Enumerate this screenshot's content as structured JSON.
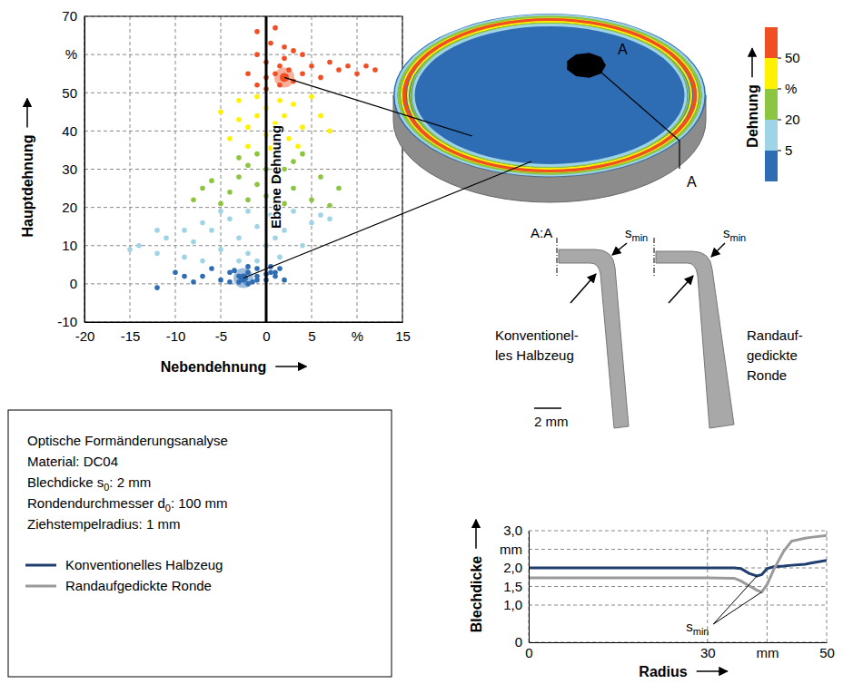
{
  "chart_data": [
    {
      "type": "scatter",
      "xlabel": "Nebendehnung",
      "ylabel": "Hauptdehnung",
      "xlim": [
        -20,
        15
      ],
      "ylim": [
        -10,
        70
      ],
      "xticks": [
        -20,
        -15,
        -10,
        -5,
        0,
        5,
        {
          "value": 10,
          "label": "%"
        },
        15
      ],
      "yticks": [
        -10,
        0,
        10,
        20,
        30,
        40,
        50,
        {
          "value": 60,
          "label": "%"
        },
        70
      ],
      "grid": true,
      "marker": "circle",
      "annotations": [
        {
          "text": "Ebene Dehnung",
          "x": 0
        }
      ],
      "highlights": [
        {
          "x": 2,
          "y": 54,
          "color": "#f04e23"
        },
        {
          "x": -2.5,
          "y": 1.5,
          "color": "#2e6db4"
        }
      ],
      "series": [
        {
          "color": "#2e6db4",
          "x": [
            -12,
            -10,
            -9,
            -8,
            -7,
            -6,
            -5,
            -4,
            -3,
            -2.5,
            -2,
            -1.5,
            -1,
            0,
            0.5,
            1,
            1.5,
            2,
            -3.5,
            -2,
            -1,
            0.5,
            -4,
            -2,
            -3,
            -1,
            0,
            1
          ],
          "values": [
            -1,
            3,
            2,
            0.5,
            2,
            4,
            1,
            0.5,
            2,
            1,
            3,
            0.5,
            2,
            1,
            3,
            2,
            4,
            1,
            3.5,
            4.5,
            4,
            4.5,
            3,
            0,
            0.5,
            1,
            2.5,
            3
          ]
        },
        {
          "color": "#9fd3e6",
          "x": [
            -15,
            -14,
            -12,
            -11,
            -9,
            -8,
            -7,
            -6,
            -5,
            -4,
            -3,
            -3,
            -2,
            -2,
            -1,
            -1,
            0,
            0.5,
            1,
            1.5,
            2,
            3,
            4,
            5,
            6,
            7,
            -5,
            -7,
            -9,
            -12
          ],
          "values": [
            9,
            10,
            8,
            12,
            7,
            11,
            6,
            14,
            9,
            17,
            6,
            12,
            19,
            8,
            15,
            6,
            10,
            18,
            12,
            7,
            14,
            19,
            10,
            16,
            18,
            17,
            19,
            16,
            14,
            14
          ]
        },
        {
          "color": "#8cc540",
          "x": [
            -8,
            -7,
            -5,
            -4,
            -3,
            -2,
            -2,
            -1,
            -1,
            0,
            0,
            1,
            1,
            2,
            2,
            3,
            4,
            5,
            6,
            7,
            8,
            -6,
            3,
            -3
          ],
          "values": [
            22,
            25,
            21,
            24,
            28,
            31,
            22,
            34,
            26,
            30,
            23,
            33,
            27,
            21,
            30,
            25,
            34,
            22,
            28,
            20.5,
            25,
            27,
            32,
            33
          ]
        },
        {
          "color": "#fff200",
          "x": [
            -5,
            -4,
            -3,
            -2,
            -2,
            -1,
            -1,
            0,
            0,
            1,
            1,
            1.5,
            2,
            2.5,
            3,
            4,
            5,
            6,
            7,
            -3,
            0.5,
            3.5
          ],
          "values": [
            45,
            38,
            48,
            41,
            36,
            44,
            49,
            39,
            46,
            42,
            36,
            48,
            44,
            38,
            47,
            41,
            49,
            44,
            40,
            43,
            35.5,
            36
          ]
        },
        {
          "color": "#f04e23",
          "x": [
            -2,
            -1,
            -1,
            0,
            0,
            0.5,
            1,
            1.5,
            2,
            2,
            2.5,
            3,
            3,
            4,
            5,
            6,
            7,
            8,
            9,
            10,
            11,
            12,
            -1,
            1,
            2,
            4,
            0,
            1.5
          ],
          "values": [
            55,
            52,
            60,
            58,
            51,
            63,
            55,
            52,
            54,
            59,
            56,
            53,
            61,
            55,
            57,
            54,
            58,
            56,
            57,
            55,
            57,
            56,
            66,
            67,
            62,
            60,
            54,
            57
          ]
        }
      ]
    },
    {
      "type": "line",
      "xlabel": "Radius",
      "ylabel": "Blechdicke",
      "xlim": [
        0,
        50
      ],
      "ylim": [
        0,
        3
      ],
      "xticks": [
        0,
        30,
        {
          "value": 40,
          "label": "mm"
        },
        50
      ],
      "yticks": [
        0,
        {
          "value": 1,
          "label": "1,0"
        },
        {
          "value": 1.5,
          "label": "1,5"
        },
        {
          "value": 2,
          "label": "2,0"
        },
        {
          "value": 2.5,
          "label": "mm"
        },
        {
          "value": 3,
          "label": "3,0"
        }
      ],
      "grid": true,
      "legend": "left",
      "annotations": [
        {
          "symbol": "s",
          "subscript": "min"
        }
      ],
      "x": [
        0,
        30,
        34.5,
        35.6,
        37,
        38.3,
        39.1,
        40,
        41.1,
        42.8,
        44.1,
        46.4,
        47.3,
        50
      ],
      "series": [
        {
          "name": "Konventionelles Halbzeug",
          "color": "#1f3e6d",
          "values": [
            2.0,
            2.0,
            2.0,
            1.98,
            1.85,
            1.78,
            1.82,
            1.98,
            2.03,
            2.05,
            2.07,
            2.1,
            2.13,
            2.2
          ]
        },
        {
          "name": "Randaufgedickte Ronde",
          "color": "#9a9a9a",
          "values": [
            1.73,
            1.73,
            1.72,
            1.65,
            1.52,
            1.4,
            1.35,
            1.55,
            1.95,
            2.45,
            2.72,
            2.8,
            2.82,
            2.87
          ]
        }
      ]
    }
  ],
  "strain_image": {
    "labels": [
      "A",
      "A"
    ],
    "colorbar": {
      "title": "Dehnung",
      "colors": [
        "#2e6db4",
        "#9fd3e6",
        "#8cc540",
        "#fff200",
        "#f04e23"
      ],
      "ticks": [
        5,
        20,
        {
          "value": 35,
          "label": "%"
        },
        50
      ]
    }
  },
  "sections": {
    "title": "A:A",
    "labels": [
      {
        "symbol": "s",
        "subscript": "min"
      },
      {
        "symbol": "s",
        "subscript": "min"
      }
    ],
    "captions": [
      [
        "Konventionel-",
        "les Halbzeug"
      ],
      [
        "Randauf-",
        "gedickte",
        "Ronde"
      ]
    ],
    "scale_bar": "2 mm"
  },
  "info_box": {
    "lines": [
      [
        "Optische Formänderungsanalyse"
      ],
      [
        "Material: DC04"
      ],
      [
        "Blechdicke s",
        "0",
        ": 2 mm"
      ],
      [
        "Rondendurchmesser d",
        "0",
        ": 100 mm"
      ],
      [
        "Ziehstempelradius: 1 mm"
      ]
    ]
  }
}
